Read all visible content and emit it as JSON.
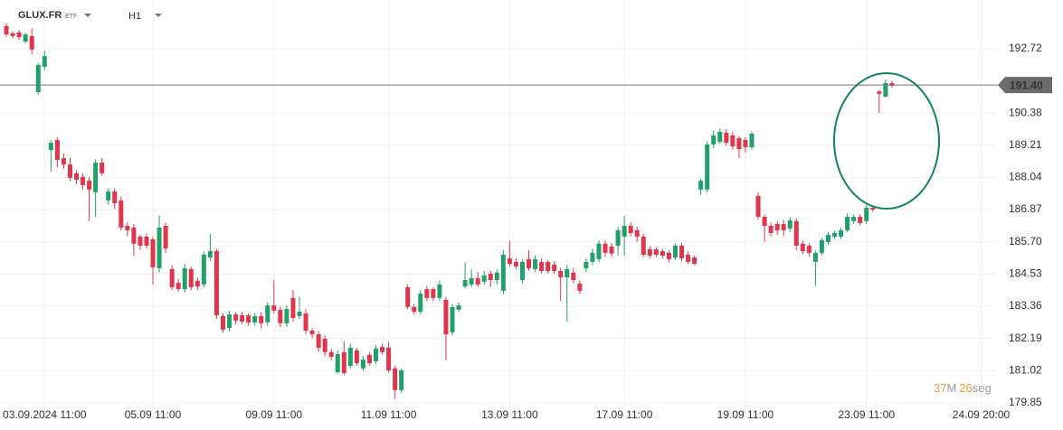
{
  "header": {
    "symbol": "GLUX.FR",
    "kind": "ETF",
    "timeframe": "H1"
  },
  "timer": {
    "minutes": "37",
    "minutes_unit": "M",
    "seconds": "26",
    "seconds_unit": "seg"
  },
  "chart_data": {
    "type": "candlestick",
    "up_color": "#22a06b",
    "down_color": "#e0364d",
    "grid": true,
    "xlim": [
      -1,
      155.2
    ],
    "ylim": [
      179.55,
      194.49
    ],
    "xticks": [
      {
        "value": 6,
        "label": "03.09.2024 11:00"
      },
      {
        "value": 23,
        "label": "05.09 11:00"
      },
      {
        "value": 42,
        "label": "09.09 11:00"
      },
      {
        "value": 60,
        "label": "11.09 11:00"
      },
      {
        "value": 79,
        "label": "13.09 11:00"
      },
      {
        "value": 97,
        "label": "17.09 11:00"
      },
      {
        "value": 116,
        "label": "19.09 11:00"
      },
      {
        "value": 135,
        "label": "23.09 11:00"
      },
      {
        "value": 153,
        "label": "24.09 20:00"
      }
    ],
    "yticks": [
      192.72,
      190.38,
      189.21,
      188.04,
      186.87,
      {
        "value": 185.7,
        "label": "185.70"
      },
      184.53,
      183.36,
      182.19,
      181.02,
      179.85
    ],
    "current_price": {
      "value": 191.4,
      "label": "191.40"
    },
    "open": [
      193.54,
      193.28,
      193.31,
      192.98,
      193.18,
      191.14,
      192.06,
      189.04,
      189.4,
      188.74,
      188.51,
      188.19,
      188.06,
      187.92,
      187.5,
      188.58,
      187.2,
      187.53,
      187.2,
      186.28,
      186.22,
      185.89,
      185.89,
      185.79,
      184.74,
      186.28,
      184.71,
      184.21,
      183.98,
      184.71,
      184.28,
      184.15,
      185.13,
      185.36,
      183.0,
      182.57,
      183.06,
      183.03,
      183.03,
      182.77,
      183.0,
      182.77,
      183.39,
      183.23,
      182.74,
      183.66,
      183.0,
      183.1,
      182.47,
      182.34,
      182.18,
      181.69,
      180.96,
      181.69,
      181.19,
      181.75,
      181.1,
      181.59,
      181.36,
      181.88,
      181.85,
      181.1,
      180.31,
      184.05,
      183.33,
      183.16,
      183.98,
      183.98,
      183.66,
      183.59,
      182.41,
      183.23,
      184.08,
      184.15,
      184.38,
      184.25,
      184.54,
      184.31,
      183.92,
      185.1,
      184.97,
      184.31,
      185.07,
      184.71,
      184.97,
      184.97,
      184.87,
      184.64,
      184.41,
      184.58,
      184.18,
      184.74,
      184.97,
      185.07,
      185.63,
      185.53,
      185.56,
      185.89,
      186.28,
      186.12,
      185.89,
      185.43,
      185.43,
      185.36,
      185.3,
      185.13,
      185.56,
      185.23,
      185.13,
      187.6,
      187.6,
      189.24,
      189.34,
      189.67,
      189.57,
      189.47,
      189.4,
      189.14,
      187.37,
      186.61,
      186.28,
      186.35,
      186.35,
      186.18,
      186.45,
      185.63,
      185.56,
      184.97,
      185.3,
      185.69,
      185.89,
      185.89,
      186.12,
      186.45,
      186.61,
      186.45,
      186.94,
      191.17,
      190.98,
      191.47
    ],
    "high": [
      193.65,
      193.35,
      193.4,
      193.3,
      193.45,
      192.2,
      192.65,
      189.4,
      189.5,
      188.9,
      188.75,
      188.3,
      188.2,
      188.05,
      188.7,
      188.75,
      187.65,
      187.65,
      187.35,
      186.4,
      186.35,
      185.95,
      186.0,
      185.9,
      186.65,
      186.4,
      184.85,
      184.35,
      184.9,
      184.8,
      184.4,
      185.35,
      186.0,
      185.45,
      183.1,
      183.2,
      183.15,
      183.15,
      183.1,
      183.1,
      183.15,
      183.5,
      184.3,
      183.35,
      183.4,
      183.95,
      183.7,
      183.25,
      182.55,
      182.45,
      182.3,
      181.8,
      181.75,
      182.1,
      182.0,
      181.85,
      181.55,
      181.7,
      181.95,
      182.0,
      182.05,
      181.2,
      181.1,
      184.15,
      183.45,
      183.95,
      184.1,
      184.05,
      184.3,
      183.7,
      183.45,
      183.5,
      184.95,
      184.7,
      184.6,
      184.65,
      184.65,
      184.7,
      185.4,
      185.75,
      185.1,
      185.05,
      185.4,
      185.2,
      185.1,
      185.05,
      185.0,
      184.75,
      184.85,
      184.75,
      184.3,
      185.1,
      185.45,
      185.75,
      185.75,
      185.65,
      186.25,
      186.65,
      186.4,
      186.25,
      186.0,
      185.55,
      185.5,
      185.45,
      185.4,
      185.65,
      185.65,
      185.35,
      185.2,
      188.0,
      189.35,
      189.75,
      189.82,
      189.8,
      189.7,
      189.55,
      189.5,
      189.7,
      187.5,
      186.7,
      186.4,
      186.45,
      186.5,
      186.6,
      186.55,
      185.75,
      185.65,
      185.4,
      185.85,
      186.05,
      186.1,
      186.2,
      186.75,
      186.7,
      186.7,
      187.05,
      187.0,
      191.21,
      191.6,
      191.55
    ],
    "low": [
      193.15,
      193.1,
      193.05,
      192.9,
      192.52,
      191.05,
      191.95,
      188.25,
      188.4,
      188.35,
      187.9,
      187.8,
      187.6,
      186.45,
      186.6,
      188.1,
      187.05,
      186.9,
      186.1,
      185.9,
      185.2,
      185.4,
      185.45,
      184.15,
      184.6,
      185.3,
      183.95,
      183.9,
      183.85,
      183.95,
      183.95,
      184.05,
      185.0,
      182.9,
      182.4,
      182.45,
      182.7,
      182.7,
      182.65,
      182.65,
      182.55,
      182.65,
      183.1,
      182.6,
      182.6,
      182.8,
      182.9,
      182.35,
      182.2,
      181.7,
      181.55,
      181.4,
      180.9,
      180.85,
      181.1,
      181.2,
      181.0,
      181.2,
      181.25,
      181.6,
      180.95,
      180.0,
      180.2,
      183.25,
      183.05,
      183.05,
      183.55,
      183.55,
      183.55,
      181.4,
      182.3,
      183.15,
      184.0,
      184.05,
      184.05,
      184.15,
      184.05,
      184.15,
      183.8,
      184.8,
      184.7,
      184.2,
      184.65,
      184.6,
      184.55,
      184.55,
      184.55,
      183.55,
      182.8,
      184.2,
      183.8,
      184.6,
      184.85,
      184.95,
      185.15,
      185.15,
      185.2,
      185.2,
      185.9,
      185.7,
      185.15,
      185.1,
      185.15,
      185.1,
      184.95,
      185.05,
      185.0,
      184.9,
      184.85,
      187.4,
      187.5,
      189.1,
      189.25,
      189.2,
      189.05,
      188.75,
      188.95,
      189.05,
      186.5,
      185.7,
      185.9,
      185.95,
      185.9,
      186.05,
      185.4,
      185.25,
      185.15,
      184.1,
      185.2,
      185.6,
      185.8,
      185.8,
      186.05,
      186.35,
      186.3,
      186.35,
      186.8,
      190.38,
      190.95,
      191.3
    ],
    "close": [
      193.24,
      193.18,
      193.14,
      193.24,
      192.69,
      192.13,
      192.45,
      189.3,
      188.68,
      188.51,
      188.02,
      187.96,
      187.76,
      187.6,
      188.58,
      188.19,
      187.53,
      187.1,
      186.22,
      186.12,
      185.63,
      185.56,
      185.56,
      184.77,
      186.22,
      185.46,
      184.05,
      183.98,
      184.74,
      184.05,
      184.08,
      185.23,
      185.36,
      183.03,
      182.51,
      183.06,
      182.84,
      182.8,
      182.77,
      183.0,
      182.74,
      183.39,
      183.2,
      182.74,
      183.26,
      182.93,
      183.16,
      182.47,
      182.34,
      181.85,
      181.69,
      181.52,
      181.62,
      180.93,
      181.85,
      181.29,
      181.42,
      181.29,
      181.82,
      181.69,
      181.03,
      180.31,
      181.03,
      183.33,
      183.16,
      183.82,
      183.66,
      183.66,
      184.15,
      182.34,
      183.33,
      183.39,
      184.31,
      184.38,
      184.15,
      184.48,
      184.31,
      184.58,
      185.23,
      184.9,
      184.81,
      184.97,
      184.74,
      185.07,
      184.64,
      184.64,
      184.64,
      184.41,
      184.71,
      184.31,
      183.92,
      184.97,
      185.3,
      185.63,
      185.3,
      185.27,
      186.12,
      186.28,
      186.02,
      185.89,
      185.23,
      185.2,
      185.23,
      185.2,
      185.07,
      185.56,
      185.1,
      184.97,
      184.9,
      187.92,
      189.24,
      189.57,
      189.7,
      189.3,
      189.17,
      189.07,
      189.14,
      189.63,
      186.61,
      186.28,
      186.02,
      186.12,
      186.12,
      186.48,
      185.56,
      185.36,
      185.3,
      185.3,
      185.76,
      185.95,
      186.02,
      186.12,
      186.61,
      186.61,
      186.38,
      186.94,
      186.87,
      191.08,
      191.47,
      191.37
    ]
  }
}
